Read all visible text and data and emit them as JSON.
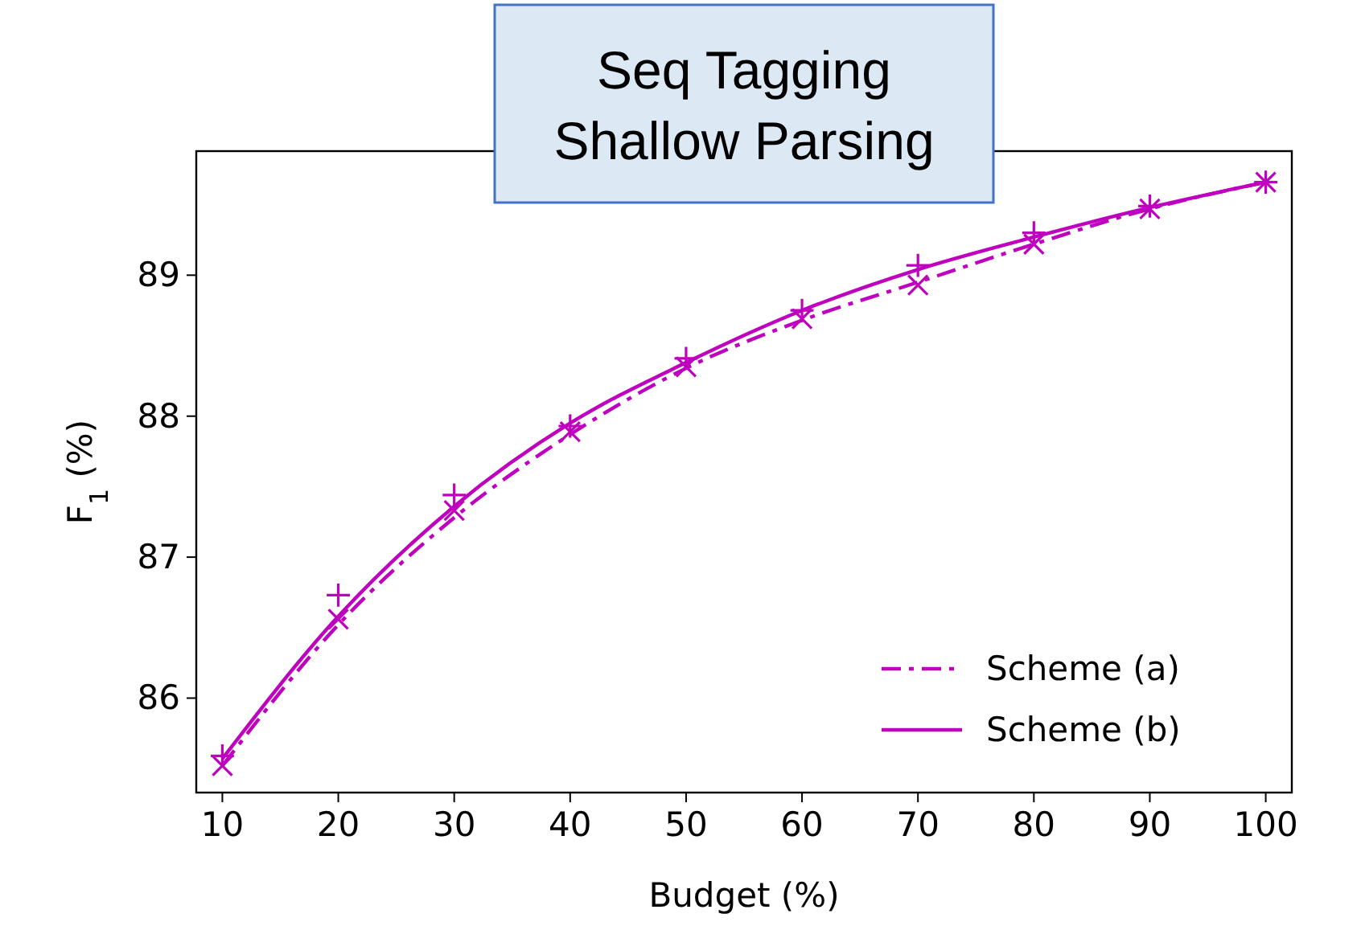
{
  "chart_data": {
    "type": "line",
    "title": "Seq Tagging\nShallow Parsing",
    "xlabel": "Budget (%)",
    "ylabel": "F$_{1}$ (%)",
    "x": [
      10,
      20,
      30,
      40,
      50,
      60,
      70,
      80,
      90,
      100
    ],
    "series": [
      {
        "name": "Scheme (a)",
        "color": "#bf00bf",
        "line_style": "dashdot",
        "marker": "none",
        "values": [
          85.52,
          86.52,
          87.28,
          87.87,
          88.34,
          88.68,
          88.95,
          89.22,
          89.47,
          89.66
        ]
      },
      {
        "name": "Scheme (b)",
        "color": "#bf00bf",
        "line_style": "solid",
        "marker": "none",
        "values": [
          85.57,
          86.58,
          87.36,
          87.95,
          88.38,
          88.75,
          89.04,
          89.27,
          89.48,
          89.66
        ]
      },
      {
        "type": "scatter",
        "color": "#bf00bf",
        "marker": "cross",
        "values": [
          85.52,
          86.56,
          87.33,
          87.89,
          88.35,
          88.69,
          88.93,
          89.22,
          89.47,
          89.66
        ]
      },
      {
        "type": "scatter",
        "color": "#bf00bf",
        "marker": "plus",
        "values": [
          85.59,
          86.73,
          87.44,
          87.93,
          88.41,
          88.75,
          89.07,
          89.3,
          89.49,
          89.66
        ]
      }
    ],
    "xlim": [
      7.75,
      102.25
    ],
    "ylim": [
      85.33,
      89.88
    ],
    "xticks": [
      10,
      20,
      30,
      40,
      50,
      60,
      70,
      80,
      90,
      100
    ],
    "yticks": [
      86,
      87,
      88,
      89
    ],
    "grid": false,
    "legend": "bottom right"
  }
}
